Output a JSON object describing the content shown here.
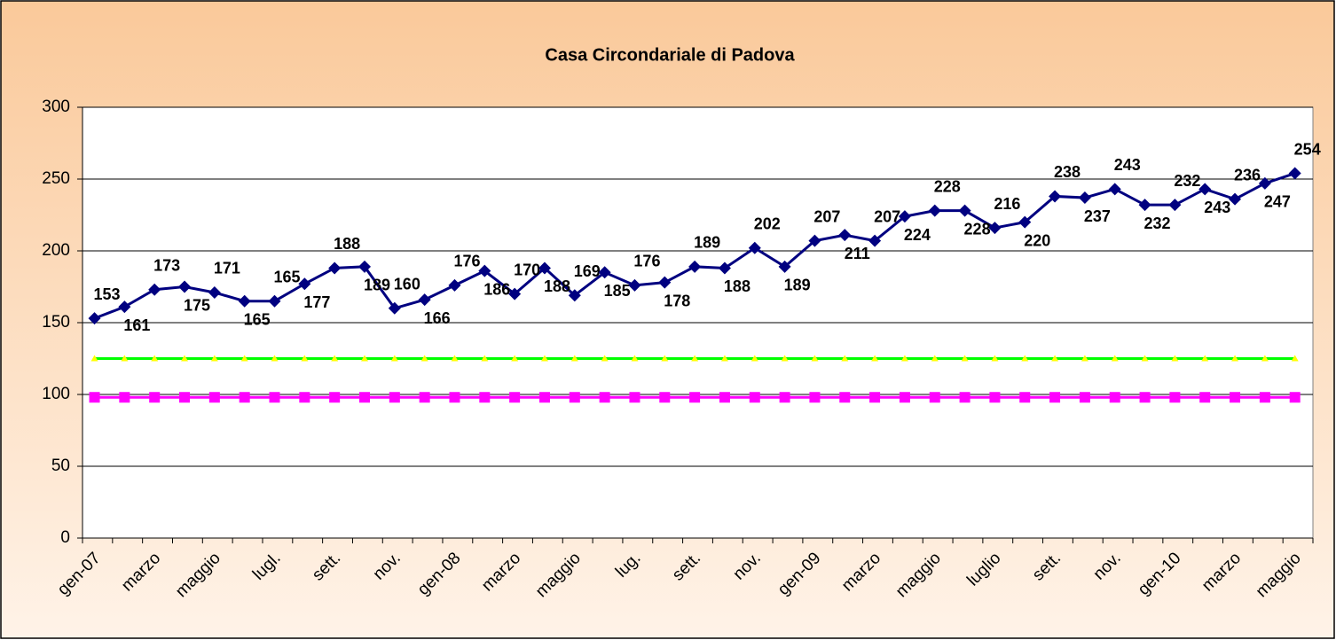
{
  "chart_data": {
    "type": "line",
    "title": "Casa Circondariale di Padova",
    "categories": [
      "gen-07",
      null,
      "marzo",
      null,
      "maggio",
      null,
      "lugl.",
      null,
      "sett.",
      null,
      "nov.",
      null,
      "gen-08",
      null,
      "marzo",
      null,
      "maggio",
      null,
      "lug.",
      null,
      "sett.",
      null,
      "nov.",
      null,
      "gen-09",
      null,
      "marzo",
      null,
      "maggio",
      null,
      "luglio",
      null,
      "sett.",
      null,
      "nov.",
      null,
      "gen-10",
      null,
      "marzo",
      null,
      "maggio"
    ],
    "series": [
      {
        "color": "#000080",
        "marker": "diamond",
        "marker_color": "#000080",
        "data_labels": true,
        "values": [
          153,
          161,
          173,
          175,
          171,
          165,
          165,
          177,
          188,
          189,
          160,
          166,
          176,
          186,
          170,
          188,
          169,
          185,
          176,
          178,
          189,
          188,
          202,
          189,
          207,
          211,
          207,
          224,
          228,
          228,
          216,
          220,
          238,
          237,
          243,
          232,
          232,
          243,
          236,
          247,
          254
        ]
      },
      {
        "color": "#00ff00",
        "marker": "triangle",
        "marker_color": "#ffff00",
        "data_labels": false,
        "values": [
          125,
          125,
          125,
          125,
          125,
          125,
          125,
          125,
          125,
          125,
          125,
          125,
          125,
          125,
          125,
          125,
          125,
          125,
          125,
          125,
          125,
          125,
          125,
          125,
          125,
          125,
          125,
          125,
          125,
          125,
          125,
          125,
          125,
          125,
          125,
          125,
          125,
          125,
          125,
          125,
          125
        ]
      },
      {
        "color": "#ff00ff",
        "marker": "square",
        "marker_color": "#ff00ff",
        "data_labels": false,
        "values": [
          98,
          98,
          98,
          98,
          98,
          98,
          98,
          98,
          98,
          98,
          98,
          98,
          98,
          98,
          98,
          98,
          98,
          98,
          98,
          98,
          98,
          98,
          98,
          98,
          98,
          98,
          98,
          98,
          98,
          98,
          98,
          98,
          98,
          98,
          98,
          98,
          98,
          98,
          98,
          98,
          98
        ]
      }
    ],
    "ylim": [
      0,
      300
    ],
    "yticks": [
      0,
      50,
      100,
      150,
      200,
      250,
      300
    ],
    "grid": true
  }
}
